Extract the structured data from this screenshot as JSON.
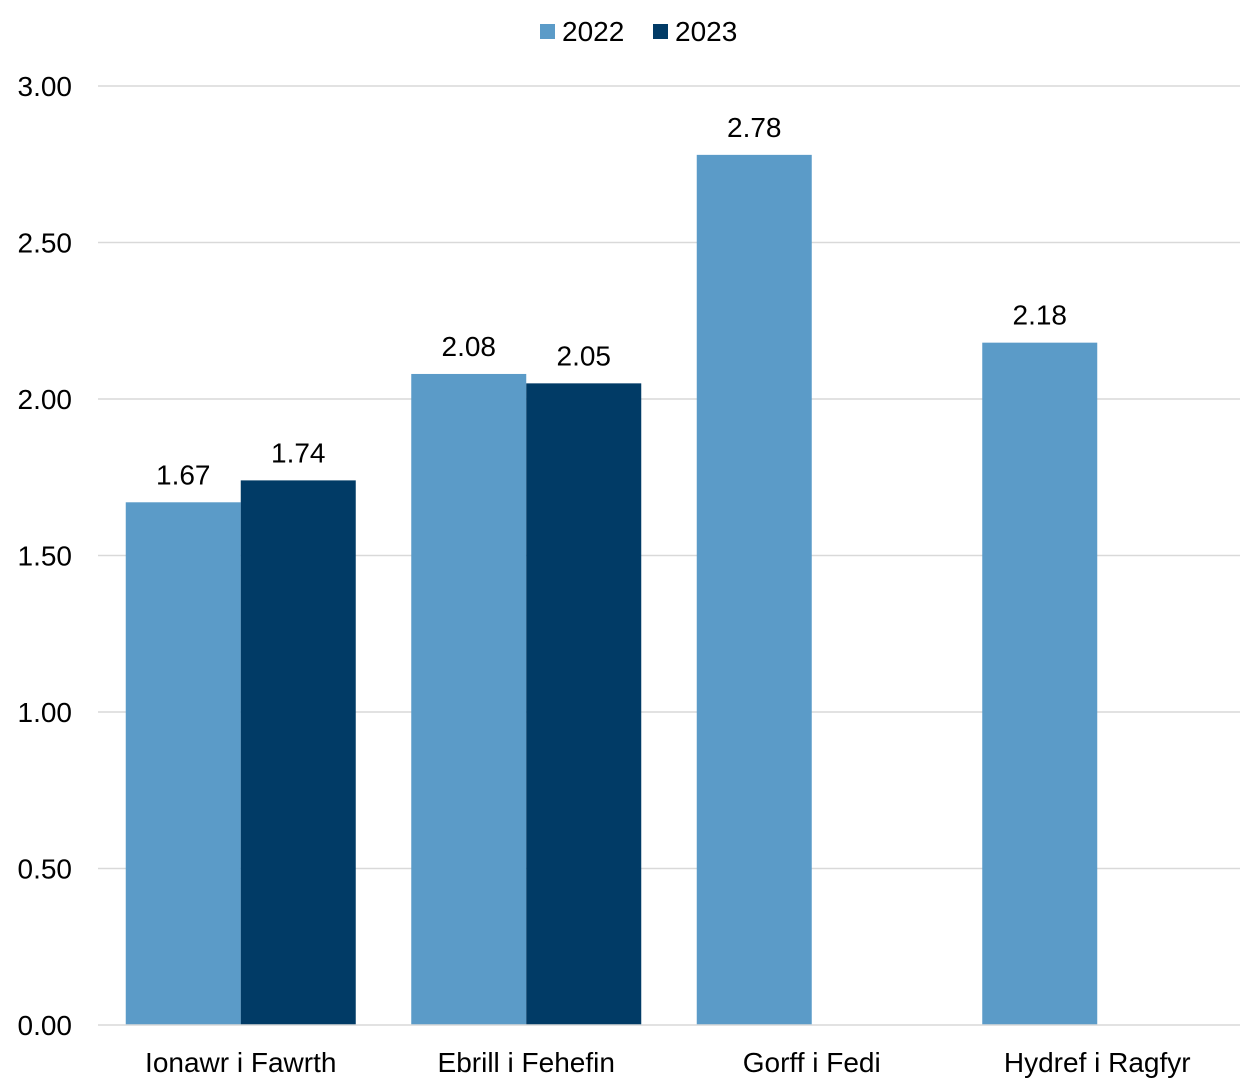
{
  "chart_data": {
    "type": "bar",
    "title": "",
    "xlabel": "",
    "ylabel": "",
    "categories": [
      "Ionawr i Fawrth",
      "Ebrill i Fehefin",
      "Gorff i Fedi",
      "Hydref i Ragfyr"
    ],
    "series": [
      {
        "name": "2022",
        "color": "#5b9bc8",
        "values": [
          1.67,
          2.08,
          2.78,
          2.18
        ],
        "labels": [
          "1.67",
          "2.08",
          "2.78",
          "2.18"
        ]
      },
      {
        "name": "2023",
        "color": "#013b66",
        "values": [
          1.74,
          2.05,
          null,
          null
        ],
        "labels": [
          "1.74",
          "2.05",
          null,
          null
        ]
      }
    ],
    "ylim": [
      0,
      3
    ],
    "yticks": [
      "0.00",
      "0.50",
      "1.00",
      "1.50",
      "2.00",
      "2.50",
      "3.00"
    ],
    "ytick_values": [
      0,
      0.5,
      1,
      1.5,
      2,
      2.5,
      3
    ],
    "grid": true,
    "legend_position": "top-center",
    "data_labels": true
  }
}
